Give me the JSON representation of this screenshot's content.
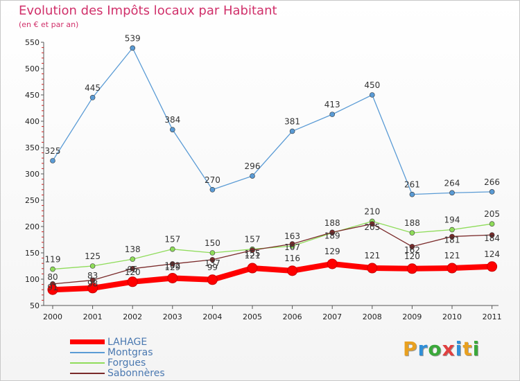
{
  "title": "Evolution des Impôts locaux par Habitant",
  "subtitle": "(en € et par an)",
  "logo_text": "Proxiti",
  "logo_colors": [
    "#e8a020",
    "#2f8fd8",
    "#3aa83a",
    "#e04040",
    "#2f8fd8",
    "#e8a020",
    "#3aa83a"
  ],
  "chart_data": {
    "type": "line",
    "x": [
      "2000",
      "2001",
      "2002",
      "2003",
      "2004",
      "2005",
      "2006",
      "2007",
      "2008",
      "2009",
      "2010",
      "2011"
    ],
    "ylim": [
      50,
      550
    ],
    "yticks": [
      50,
      100,
      150,
      200,
      250,
      300,
      350,
      400,
      450,
      500,
      550
    ],
    "grid": false,
    "legend_position": "bottom-left",
    "series": [
      {
        "name": "LAHAGE",
        "color": "#ff0000",
        "width": 8,
        "values": [
          80,
          83,
          95,
          102,
          99,
          121,
          116,
          129,
          121,
          120,
          121,
          124
        ]
      },
      {
        "name": "Montgras",
        "color": "#5a9bd5",
        "width": 1.3,
        "values": [
          325,
          445,
          539,
          384,
          270,
          296,
          381,
          413,
          450,
          261,
          264,
          266
        ]
      },
      {
        "name": "Forgues",
        "color": "#8fdc5a",
        "width": 1.3,
        "values": [
          119,
          125,
          138,
          157,
          150,
          157,
          163,
          188,
          210,
          188,
          194,
          205
        ]
      },
      {
        "name": "Sabonnères",
        "color": "#7a2a2a",
        "width": 1.3,
        "values": [
          91,
          98,
          120,
          129,
          137,
          155,
          167,
          189,
          205,
          162,
          181,
          184
        ]
      }
    ]
  }
}
